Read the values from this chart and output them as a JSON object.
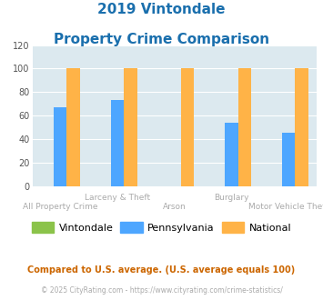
{
  "title_line1": "2019 Vintondale",
  "title_line2": "Property Crime Comparison",
  "groups": [
    {
      "label": "All Property Crime",
      "vintondale": 0,
      "pennsylvania": 67,
      "national": 100
    },
    {
      "label": "Larceny & Theft",
      "vintondale": 0,
      "pennsylvania": 73,
      "national": 100
    },
    {
      "label": "Arson",
      "vintondale": 0,
      "pennsylvania": 0,
      "national": 100
    },
    {
      "label": "Burglary",
      "vintondale": 0,
      "pennsylvania": 54,
      "national": 100
    },
    {
      "label": "Motor Vehicle Theft",
      "vintondale": 0,
      "pennsylvania": 45,
      "national": 100
    }
  ],
  "top_labels": [
    "",
    "Larceny & Theft",
    "",
    "Burglary",
    ""
  ],
  "bottom_labels": [
    "All Property Crime",
    "",
    "Arson",
    "",
    "Motor Vehicle Theft"
  ],
  "color_vintondale": "#8bc34a",
  "color_pennsylvania": "#4da6ff",
  "color_national": "#ffb347",
  "ylim": [
    0,
    120
  ],
  "yticks": [
    0,
    20,
    40,
    60,
    80,
    100,
    120
  ],
  "background_color": "#dce9ef",
  "grid_color": "#ffffff",
  "title_color": "#1a6fad",
  "xlabel_color": "#aaaaaa",
  "legend_labels": [
    "Vintondale",
    "Pennsylvania",
    "National"
  ],
  "legend_text_colors": [
    "#555555",
    "#555555",
    "#555555"
  ],
  "footnote1": "Compared to U.S. average. (U.S. average equals 100)",
  "footnote2": "© 2025 CityRating.com - https://www.cityrating.com/crime-statistics/",
  "footnote1_color": "#cc6600",
  "footnote2_color": "#aaaaaa"
}
